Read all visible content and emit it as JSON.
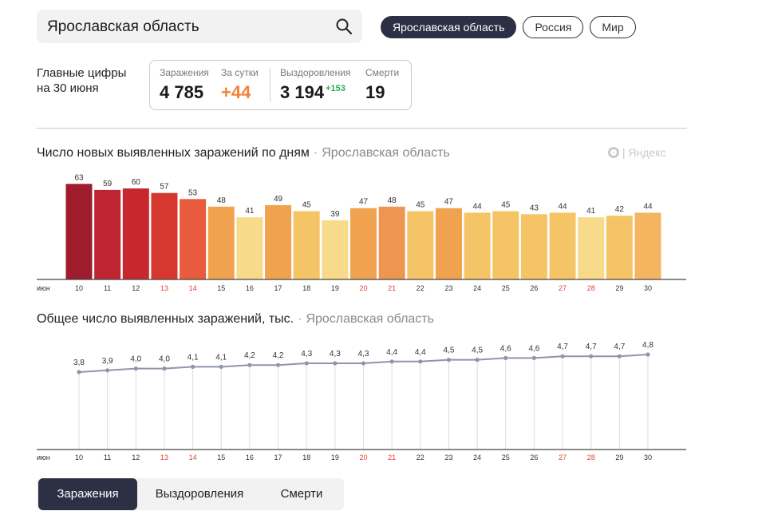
{
  "search": {
    "value": "Ярославская область"
  },
  "region_tabs": [
    "Ярославская область",
    "Россия",
    "Мир"
  ],
  "summary": {
    "label_line1": "Главные цифры",
    "label_line2": "на 30 июня",
    "infections_label": "Заражения",
    "infections_value": "4 785",
    "daily_label": "За сутки",
    "daily_value": "+44",
    "recovered_label": "Выздоровления",
    "recovered_value": "3 194",
    "recovered_delta": "+153",
    "deaths_label": "Смерти",
    "deaths_value": "19"
  },
  "chart1_header": {
    "title": "Число новых выявленных заражений по дням",
    "separator": "·",
    "region": "Ярославская область"
  },
  "chart2_header": {
    "title": "Общее число выявленных заражений, тыс.",
    "separator": "·",
    "region": "Ярославская область"
  },
  "brand": {
    "text": "Яндекс"
  },
  "bottom_tabs": [
    "Заражения",
    "Выздоровления",
    "Смерти"
  ],
  "colors": {
    "weekday_tick": "#333333",
    "weekend_tick": "#e0453a",
    "accent_dark": "#2d3044",
    "line": "#8e96a8"
  },
  "chart_data": [
    {
      "type": "bar",
      "month_label": "июн",
      "categories": [
        "10",
        "11",
        "12",
        "13",
        "14",
        "15",
        "16",
        "17",
        "18",
        "19",
        "20",
        "21",
        "22",
        "23",
        "24",
        "25",
        "26",
        "27",
        "28",
        "29",
        "30"
      ],
      "values": [
        63,
        59,
        60,
        57,
        53,
        48,
        41,
        49,
        45,
        39,
        47,
        48,
        45,
        47,
        44,
        45,
        43,
        44,
        41,
        42,
        44
      ],
      "weekend": [
        false,
        false,
        false,
        true,
        true,
        false,
        false,
        false,
        false,
        false,
        true,
        true,
        false,
        false,
        false,
        false,
        false,
        true,
        true,
        false,
        false
      ],
      "bar_colors": [
        "#9e1c2c",
        "#be2530",
        "#c7282d",
        "#d6372f",
        "#e85c3d",
        "#f1a24f",
        "#f7da8a",
        "#f1a24f",
        "#f5c466",
        "#f7da8a",
        "#f1a24f",
        "#ee9551",
        "#f5c466",
        "#f1a24f",
        "#f5c466",
        "#f5c466",
        "#f5c466",
        "#f5c466",
        "#f7da8a",
        "#f5c466",
        "#f5b45f"
      ]
    },
    {
      "type": "line",
      "month_label": "июн",
      "categories": [
        "10",
        "11",
        "12",
        "13",
        "14",
        "15",
        "16",
        "17",
        "18",
        "19",
        "20",
        "21",
        "22",
        "23",
        "24",
        "25",
        "26",
        "27",
        "28",
        "29",
        "30"
      ],
      "values": [
        3.8,
        3.9,
        4.0,
        4.0,
        4.1,
        4.1,
        4.2,
        4.2,
        4.3,
        4.3,
        4.3,
        4.4,
        4.4,
        4.5,
        4.5,
        4.6,
        4.6,
        4.7,
        4.7,
        4.7,
        4.8
      ],
      "value_labels": [
        "3,8",
        "3,9",
        "4,0",
        "4,0",
        "4,1",
        "4,1",
        "4,2",
        "4,2",
        "4,3",
        "4,3",
        "4,3",
        "4,4",
        "4,4",
        "4,5",
        "4,5",
        "4,6",
        "4,6",
        "4,7",
        "4,7",
        "4,7",
        "4,8"
      ],
      "weekend": [
        false,
        false,
        false,
        true,
        true,
        false,
        false,
        false,
        false,
        false,
        true,
        true,
        false,
        false,
        false,
        false,
        false,
        true,
        true,
        false,
        false
      ]
    }
  ]
}
